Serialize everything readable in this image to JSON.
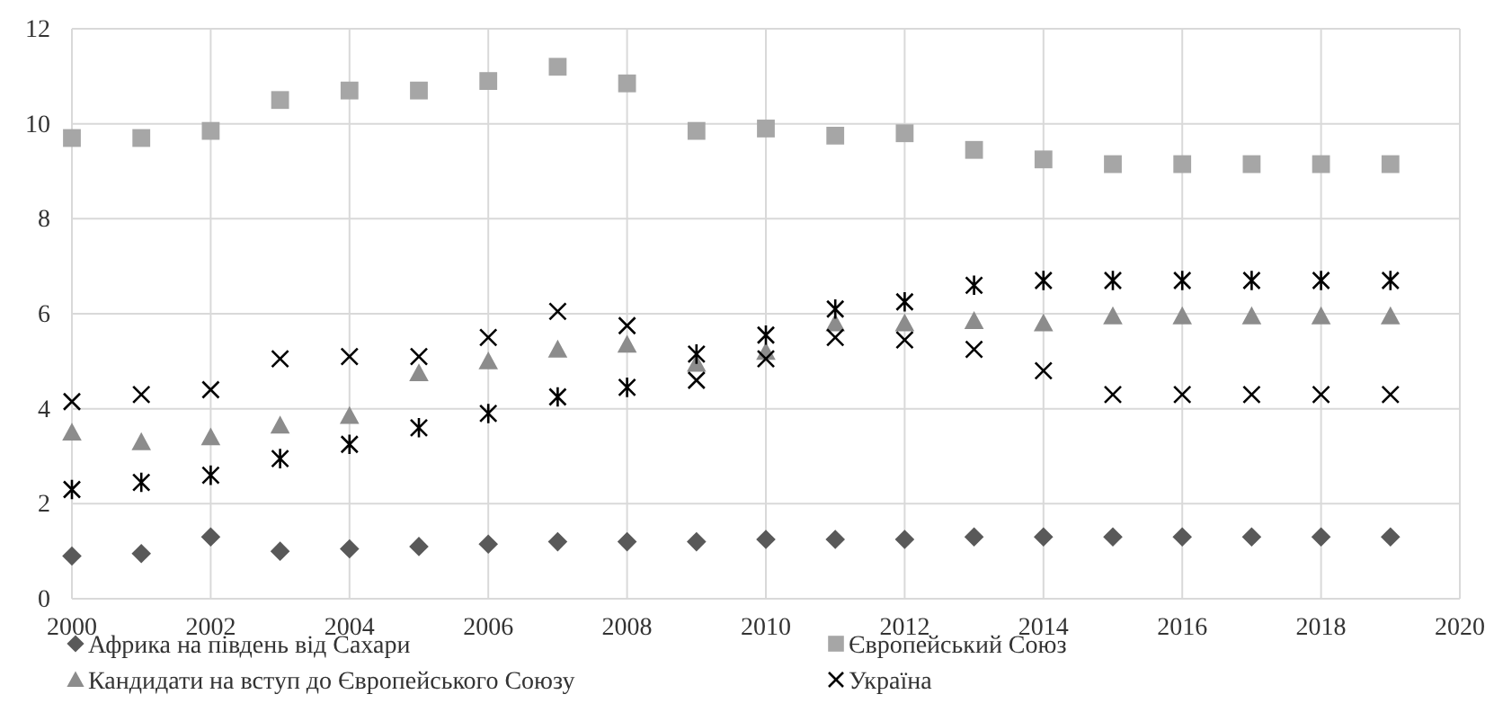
{
  "chart_data": {
    "type": "scatter",
    "x": [
      2000,
      2001,
      2002,
      2003,
      2004,
      2005,
      2006,
      2007,
      2008,
      2009,
      2010,
      2011,
      2012,
      2013,
      2014,
      2015,
      2016,
      2017,
      2018,
      2019
    ],
    "series": [
      {
        "name": "Африка на південь від Сахари",
        "color": "#595959",
        "marker": "diamond",
        "values": [
          0.9,
          0.95,
          1.3,
          1.0,
          1.05,
          1.1,
          1.15,
          1.2,
          1.2,
          1.2,
          1.25,
          1.25,
          1.25,
          1.3,
          1.3,
          1.3,
          1.3,
          1.3,
          1.3,
          1.3
        ]
      },
      {
        "name": "Європейський Союз",
        "color": "#a6a6a6",
        "marker": "square",
        "values": [
          9.7,
          9.7,
          9.85,
          10.5,
          10.7,
          10.7,
          10.9,
          11.2,
          10.85,
          9.85,
          9.9,
          9.75,
          9.8,
          9.45,
          9.25,
          9.15,
          9.15,
          9.15,
          9.15,
          9.15
        ]
      },
      {
        "name": "Кандидати на вступ до Європейського Союзу",
        "color": "#8c8c8c",
        "marker": "triangle",
        "values": [
          3.5,
          3.3,
          3.4,
          3.65,
          3.85,
          4.75,
          5.0,
          5.25,
          5.35,
          4.95,
          5.2,
          5.8,
          5.8,
          5.85,
          5.8,
          5.95,
          5.95,
          5.95,
          5.95,
          5.95
        ]
      },
      {
        "name": "Україна",
        "color": "#000000",
        "marker": "cross",
        "values": [
          4.15,
          4.3,
          4.4,
          5.05,
          5.1,
          5.1,
          5.5,
          6.05,
          5.75,
          4.6,
          5.05,
          5.5,
          5.45,
          5.25,
          4.8,
          4.3,
          4.3,
          4.3,
          4.3,
          4.3
        ]
      },
      {
        "color": "#000000",
        "values": [
          2.3,
          2.45,
          2.6,
          2.95,
          3.25,
          3.6,
          3.9,
          4.25,
          4.45,
          5.15,
          5.55,
          6.1,
          6.25,
          6.6,
          6.7,
          6.7,
          6.7,
          6.7,
          6.7,
          6.7
        ]
      }
    ],
    "xlim": [
      2000,
      2020
    ],
    "xticks": [
      2000,
      2002,
      2004,
      2006,
      2008,
      2010,
      2012,
      2014,
      2016,
      2018,
      2020
    ],
    "ylim": [
      0,
      12
    ],
    "yticks": [
      0,
      2,
      4,
      6,
      8,
      10,
      12
    ],
    "grid": true,
    "legend": "bottom"
  }
}
